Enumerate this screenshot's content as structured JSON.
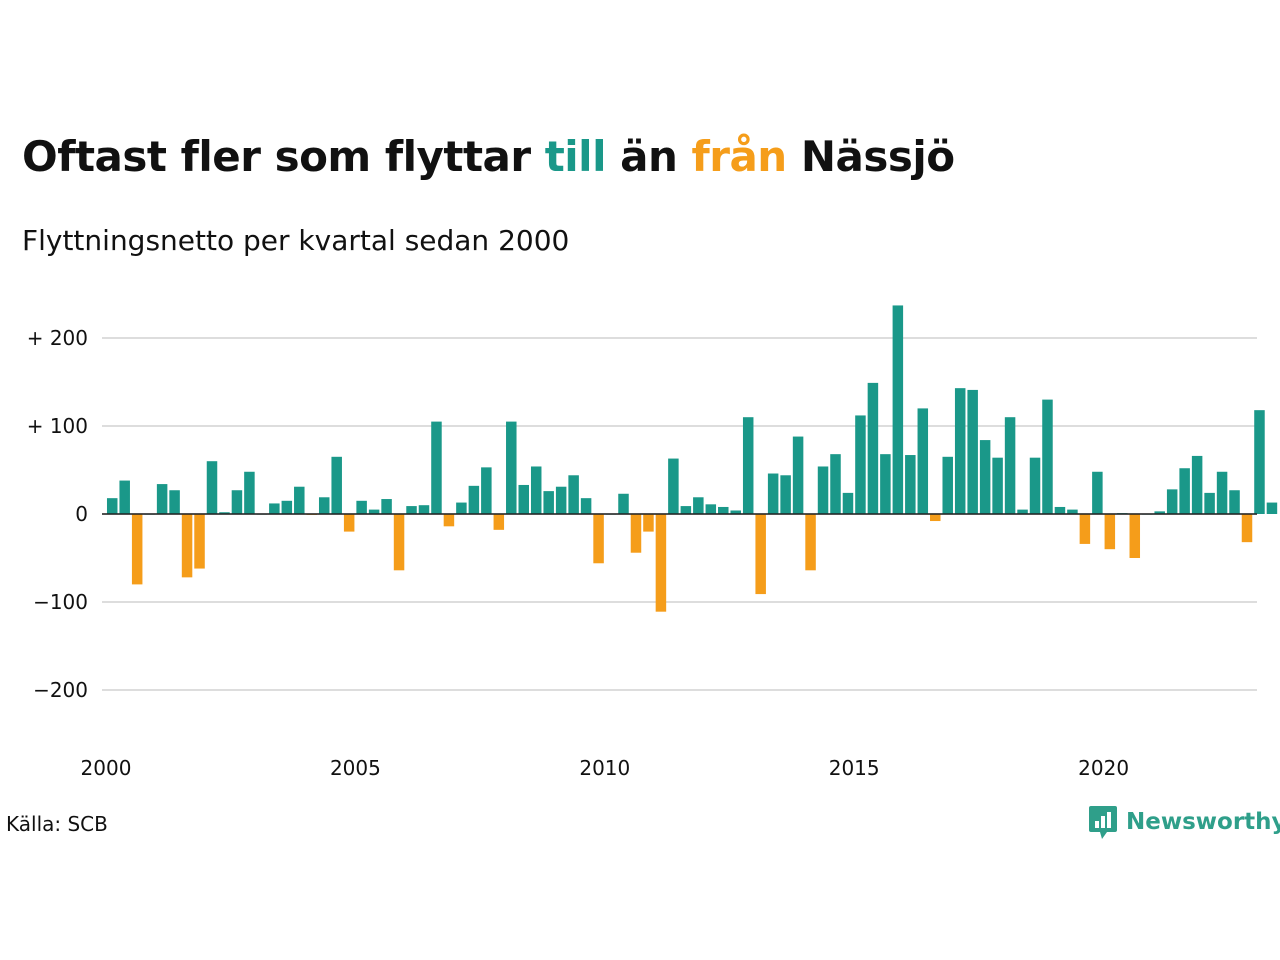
{
  "title": {
    "part1": "Oftast fler som flyttar ",
    "part2": "till",
    "part3": " än ",
    "part4": "från",
    "part5": " Nässjö"
  },
  "subtitle": "Flyttningsnetto per kvartal sedan 2000",
  "source": "Källa: SCB",
  "brand": "Newsworthy",
  "colors": {
    "positive": "#1a9889",
    "negative": "#f59d1a",
    "grid": "#dddddd",
    "brand": "#2f9f8a"
  },
  "chart_data": {
    "type": "bar",
    "x_start": "2000 Q1",
    "y_ticks": [
      {
        "value": 200,
        "label": "+ 200"
      },
      {
        "value": 100,
        "label": "+ 100"
      },
      {
        "value": 0,
        "label": "0"
      },
      {
        "value": -100,
        "label": "−100"
      },
      {
        "value": -200,
        "label": "−200"
      }
    ],
    "x_ticks": [
      {
        "year": 2000,
        "label": "2000"
      },
      {
        "year": 2005,
        "label": "2005"
      },
      {
        "year": 2010,
        "label": "2010"
      },
      {
        "year": 2015,
        "label": "2015"
      },
      {
        "year": 2020,
        "label": "2020"
      }
    ],
    "ylim": [
      -250,
      240
    ],
    "values": [
      18,
      38,
      -80,
      0,
      34,
      27,
      -72,
      -62,
      60,
      2,
      27,
      48,
      0,
      12,
      15,
      31,
      -1,
      19,
      65,
      -20,
      15,
      5,
      17,
      -64,
      9,
      10,
      105,
      -14,
      13,
      32,
      53,
      -18,
      105,
      33,
      54,
      26,
      31,
      44,
      18,
      -56,
      0,
      23,
      -44,
      -20,
      -111,
      63,
      9,
      19,
      11,
      8,
      4,
      110,
      -91,
      46,
      44,
      88,
      -64,
      54,
      68,
      24,
      112,
      149,
      68,
      237,
      67,
      120,
      -8,
      65,
      143,
      141,
      84,
      64,
      110,
      5,
      64,
      130,
      8,
      5,
      -34,
      48,
      -40,
      1,
      -50,
      0,
      3,
      28,
      52,
      66,
      24,
      48,
      27,
      -32,
      118,
      13
    ]
  }
}
